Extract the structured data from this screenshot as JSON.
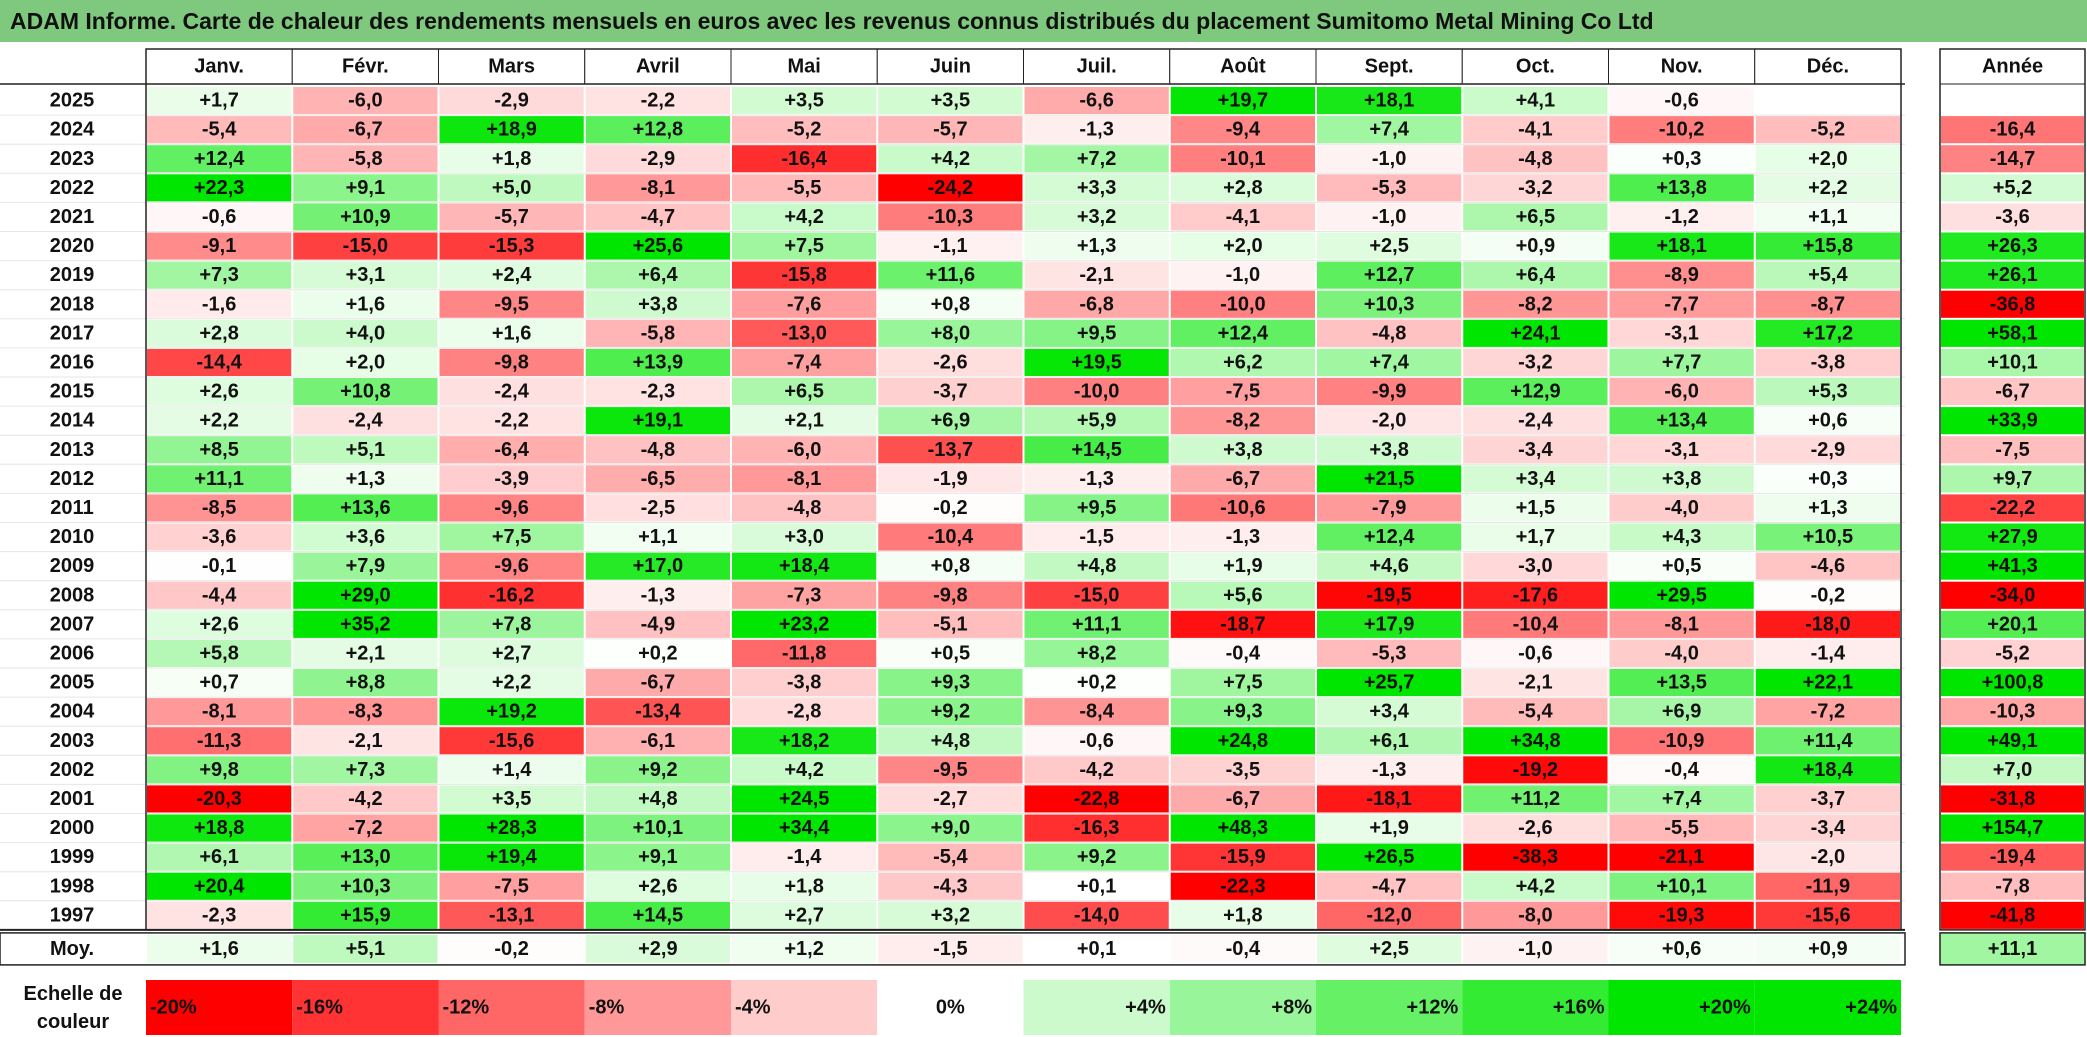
{
  "title": "ADAM Informe. Carte de chaleur des rendements mensuels en euros avec les revenus connus distribués du placement Sumitomo Metal Mining Co Ltd",
  "chart_data": {
    "type": "heatmap",
    "months": [
      "Janv.",
      "Févr.",
      "Mars",
      "Avril",
      "Mai",
      "Juin",
      "Juil.",
      "Août",
      "Sept.",
      "Oct.",
      "Nov.",
      "Déc."
    ],
    "year_header": "Année",
    "rows": [
      {
        "year": "2025",
        "values": [
          "+1,7",
          "-6,0",
          "-2,9",
          "-2,2",
          "+3,5",
          "+3,5",
          "-6,6",
          "+19,7",
          "+18,1",
          "+4,1",
          "-0,6",
          ""
        ],
        "annual": ""
      },
      {
        "year": "2024",
        "values": [
          "-5,4",
          "-6,7",
          "+18,9",
          "+12,8",
          "-5,2",
          "-5,7",
          "-1,3",
          "-9,4",
          "+7,4",
          "-4,1",
          "-10,2",
          "-5,2"
        ],
        "annual": "-16,4"
      },
      {
        "year": "2023",
        "values": [
          "+12,4",
          "-5,8",
          "+1,8",
          "-2,9",
          "-16,4",
          "+4,2",
          "+7,2",
          "-10,1",
          "-1,0",
          "-4,8",
          "+0,3",
          "+2,0"
        ],
        "annual": "-14,7"
      },
      {
        "year": "2022",
        "values": [
          "+22,3",
          "+9,1",
          "+5,0",
          "-8,1",
          "-5,5",
          "-24,2",
          "+3,3",
          "+2,8",
          "-5,3",
          "-3,2",
          "+13,8",
          "+2,2"
        ],
        "annual": "+5,2"
      },
      {
        "year": "2021",
        "values": [
          "-0,6",
          "+10,9",
          "-5,7",
          "-4,7",
          "+4,2",
          "-10,3",
          "+3,2",
          "-4,1",
          "-1,0",
          "+6,5",
          "-1,2",
          "+1,1"
        ],
        "annual": "-3,6"
      },
      {
        "year": "2020",
        "values": [
          "-9,1",
          "-15,0",
          "-15,3",
          "+25,6",
          "+7,5",
          "-1,1",
          "+1,3",
          "+2,0",
          "+2,5",
          "+0,9",
          "+18,1",
          "+15,8"
        ],
        "annual": "+26,3"
      },
      {
        "year": "2019",
        "values": [
          "+7,3",
          "+3,1",
          "+2,4",
          "+6,4",
          "-15,8",
          "+11,6",
          "-2,1",
          "-1,0",
          "+12,7",
          "+6,4",
          "-8,9",
          "+5,4"
        ],
        "annual": "+26,1"
      },
      {
        "year": "2018",
        "values": [
          "-1,6",
          "+1,6",
          "-9,5",
          "+3,8",
          "-7,6",
          "+0,8",
          "-6,8",
          "-10,0",
          "+10,3",
          "-8,2",
          "-7,7",
          "-8,7"
        ],
        "annual": "-36,8"
      },
      {
        "year": "2017",
        "values": [
          "+2,8",
          "+4,0",
          "+1,6",
          "-5,8",
          "-13,0",
          "+8,0",
          "+9,5",
          "+12,4",
          "-4,8",
          "+24,1",
          "-3,1",
          "+17,2"
        ],
        "annual": "+58,1"
      },
      {
        "year": "2016",
        "values": [
          "-14,4",
          "+2,0",
          "-9,8",
          "+13,9",
          "-7,4",
          "-2,6",
          "+19,5",
          "+6,2",
          "+7,4",
          "-3,2",
          "+7,7",
          "-3,8"
        ],
        "annual": "+10,1"
      },
      {
        "year": "2015",
        "values": [
          "+2,6",
          "+10,8",
          "-2,4",
          "-2,3",
          "+6,5",
          "-3,7",
          "-10,0",
          "-7,5",
          "-9,9",
          "+12,9",
          "-6,0",
          "+5,3"
        ],
        "annual": "-6,7"
      },
      {
        "year": "2014",
        "values": [
          "+2,2",
          "-2,4",
          "-2,2",
          "+19,1",
          "+2,1",
          "+6,9",
          "+5,9",
          "-8,2",
          "-2,0",
          "-2,4",
          "+13,4",
          "+0,6"
        ],
        "annual": "+33,9"
      },
      {
        "year": "2013",
        "values": [
          "+8,5",
          "+5,1",
          "-6,4",
          "-4,8",
          "-6,0",
          "-13,7",
          "+14,5",
          "+3,8",
          "+3,8",
          "-3,4",
          "-3,1",
          "-2,9"
        ],
        "annual": "-7,5"
      },
      {
        "year": "2012",
        "values": [
          "+11,1",
          "+1,3",
          "-3,9",
          "-6,5",
          "-8,1",
          "-1,9",
          "-1,3",
          "-6,7",
          "+21,5",
          "+3,4",
          "+3,8",
          "+0,3"
        ],
        "annual": "+9,7"
      },
      {
        "year": "2011",
        "values": [
          "-8,5",
          "+13,6",
          "-9,6",
          "-2,5",
          "-4,8",
          "-0,2",
          "+9,5",
          "-10,6",
          "-7,9",
          "+1,5",
          "-4,0",
          "+1,3"
        ],
        "annual": "-22,2"
      },
      {
        "year": "2010",
        "values": [
          "-3,6",
          "+3,6",
          "+7,5",
          "+1,1",
          "+3,0",
          "-10,4",
          "-1,5",
          "-1,3",
          "+12,4",
          "+1,7",
          "+4,3",
          "+10,5"
        ],
        "annual": "+27,9"
      },
      {
        "year": "2009",
        "values": [
          "-0,1",
          "+7,9",
          "-9,6",
          "+17,0",
          "+18,4",
          "+0,8",
          "+4,8",
          "+1,9",
          "+4,6",
          "-3,0",
          "+0,5",
          "-4,6"
        ],
        "annual": "+41,3"
      },
      {
        "year": "2008",
        "values": [
          "-4,4",
          "+29,0",
          "-16,2",
          "-1,3",
          "-7,3",
          "-9,8",
          "-15,0",
          "+5,6",
          "-19,5",
          "-17,6",
          "+29,5",
          "-0,2"
        ],
        "annual": "-34,0"
      },
      {
        "year": "2007",
        "values": [
          "+2,6",
          "+35,2",
          "+7,8",
          "-4,9",
          "+23,2",
          "-5,1",
          "+11,1",
          "-18,7",
          "+17,9",
          "-10,4",
          "-8,1",
          "-18,0"
        ],
        "annual": "+20,1"
      },
      {
        "year": "2006",
        "values": [
          "+5,8",
          "+2,1",
          "+2,7",
          "+0,2",
          "-11,8",
          "+0,5",
          "+8,2",
          "-0,4",
          "-5,3",
          "-0,6",
          "-4,0",
          "-1,4"
        ],
        "annual": "-5,2"
      },
      {
        "year": "2005",
        "values": [
          "+0,7",
          "+8,8",
          "+2,2",
          "-6,7",
          "-3,8",
          "+9,3",
          "+0,2",
          "+7,5",
          "+25,7",
          "-2,1",
          "+13,5",
          "+22,1"
        ],
        "annual": "+100,8"
      },
      {
        "year": "2004",
        "values": [
          "-8,1",
          "-8,3",
          "+19,2",
          "-13,4",
          "-2,8",
          "+9,2",
          "-8,4",
          "+9,3",
          "+3,4",
          "-5,4",
          "+6,9",
          "-7,2"
        ],
        "annual": "-10,3"
      },
      {
        "year": "2003",
        "values": [
          "-11,3",
          "-2,1",
          "-15,6",
          "-6,1",
          "+18,2",
          "+4,8",
          "-0,6",
          "+24,8",
          "+6,1",
          "+34,8",
          "-10,9",
          "+11,4"
        ],
        "annual": "+49,1"
      },
      {
        "year": "2002",
        "values": [
          "+9,8",
          "+7,3",
          "+1,4",
          "+9,2",
          "+4,2",
          "-9,5",
          "-4,2",
          "-3,5",
          "-1,3",
          "-19,2",
          "-0,4",
          "+18,4"
        ],
        "annual": "+7,0"
      },
      {
        "year": "2001",
        "values": [
          "-20,3",
          "-4,2",
          "+3,5",
          "+4,8",
          "+24,5",
          "-2,7",
          "-22,8",
          "-6,7",
          "-18,1",
          "+11,2",
          "+7,4",
          "-3,7"
        ],
        "annual": "-31,8"
      },
      {
        "year": "2000",
        "values": [
          "+18,8",
          "-7,2",
          "+28,3",
          "+10,1",
          "+34,4",
          "+9,0",
          "-16,3",
          "+48,3",
          "+1,9",
          "-2,6",
          "-5,5",
          "-3,4"
        ],
        "annual": "+154,7"
      },
      {
        "year": "1999",
        "values": [
          "+6,1",
          "+13,0",
          "+19,4",
          "+9,1",
          "-1,4",
          "-5,4",
          "+9,2",
          "-15,9",
          "+26,5",
          "-38,3",
          "-21,1",
          "-2,0"
        ],
        "annual": "-19,4"
      },
      {
        "year": "1998",
        "values": [
          "+20,4",
          "+10,3",
          "-7,5",
          "+2,6",
          "+1,8",
          "-4,3",
          "+0,1",
          "-22,3",
          "-4,7",
          "+4,2",
          "+10,1",
          "-11,9"
        ],
        "annual": "-7,8"
      },
      {
        "year": "1997",
        "values": [
          "-2,3",
          "+15,9",
          "-13,1",
          "+14,5",
          "+2,7",
          "+3,2",
          "-14,0",
          "+1,8",
          "-12,0",
          "-8,0",
          "-19,3",
          "-15,6"
        ],
        "annual": "-41,8"
      }
    ],
    "average": {
      "label": "Moy.",
      "values": [
        "+1,6",
        "+5,1",
        "-0,2",
        "+2,9",
        "+1,2",
        "-1,5",
        "+0,1",
        "-0,4",
        "+2,5",
        "-1,0",
        "+0,6",
        "+0,9"
      ],
      "annual": "+11,1"
    },
    "scale": {
      "label_line1": "Echelle de",
      "label_line2": "couleur",
      "stops": [
        "-20%",
        "-16%",
        "-12%",
        "-8%",
        "-4%",
        "0%",
        "+4%",
        "+8%",
        "+12%",
        "+16%",
        "+20%",
        "+24%"
      ],
      "stop_values": [
        -20,
        -16,
        -12,
        -8,
        -4,
        0,
        4,
        8,
        12,
        16,
        20,
        24
      ]
    },
    "colors": {
      "negative_max": "#ff0000",
      "positive_max": "#00e600",
      "neutral": "#ffffff",
      "title_bar": "#7ec97e"
    }
  }
}
